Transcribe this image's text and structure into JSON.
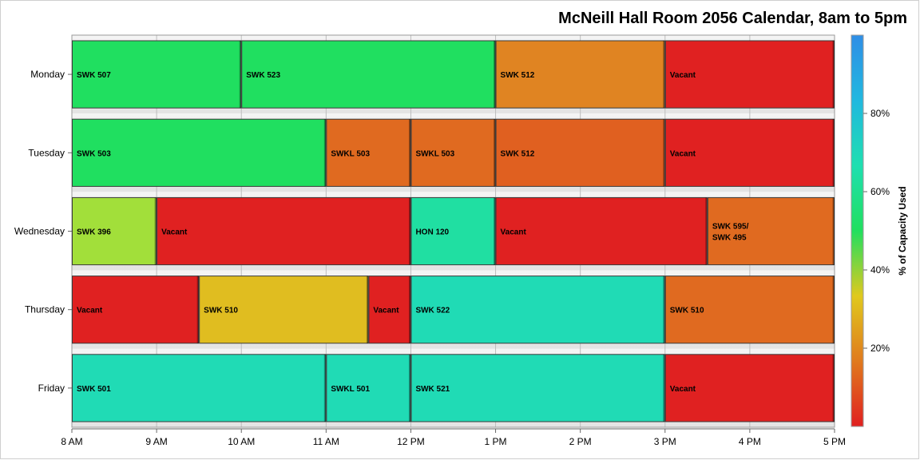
{
  "chart_data": {
    "type": "gantt",
    "title": "McNeill Hall Room 2056 Calendar, 8am to 5pm",
    "x_axis": {
      "range_hours": [
        8,
        17
      ],
      "tick_labels": [
        "8 AM",
        "9 AM",
        "10 AM",
        "11 AM",
        "12 PM",
        "1 PM",
        "2 PM",
        "3 PM",
        "4 PM",
        "5 PM"
      ]
    },
    "days": [
      "Monday",
      "Tuesday",
      "Wednesday",
      "Thursday",
      "Friday"
    ],
    "colorbar": {
      "title": "% of Capacity Used",
      "tick_labels": [
        "20%",
        "40%",
        "60%",
        "80%"
      ],
      "tick_values": [
        20,
        40,
        60,
        80
      ],
      "range": [
        0,
        100
      ],
      "colors": [
        "#e02020",
        "#e07a1e",
        "#e0c91e",
        "#21df5f",
        "#1fdfb0",
        "#21b8df",
        "#2f8ee6"
      ]
    },
    "events": [
      {
        "day": "Monday",
        "label": "SWK 507",
        "start": 8,
        "end": 10,
        "capacity": 65,
        "color": "#20df60"
      },
      {
        "day": "Monday",
        "label": "SWK 523",
        "start": 10,
        "end": 13,
        "capacity": 65,
        "color": "#20df60"
      },
      {
        "day": "Monday",
        "label": "SWK 512",
        "start": 13,
        "end": 15,
        "capacity": 32,
        "color": "#e08422"
      },
      {
        "day": "Monday",
        "label": "Vacant",
        "start": 15,
        "end": 17,
        "capacity": 0,
        "color": "#e02121"
      },
      {
        "day": "Tuesday",
        "label": "SWK 503",
        "start": 8,
        "end": 11,
        "capacity": 65,
        "color": "#20df60"
      },
      {
        "day": "Tuesday",
        "label": "SWKL 503",
        "start": 11,
        "end": 12,
        "capacity": 27,
        "color": "#e06a20"
      },
      {
        "day": "Tuesday",
        "label": "SWKL 503",
        "start": 12,
        "end": 13,
        "capacity": 27,
        "color": "#e06a20"
      },
      {
        "day": "Tuesday",
        "label": "SWK 512",
        "start": 13,
        "end": 15,
        "capacity": 25,
        "color": "#e06020"
      },
      {
        "day": "Tuesday",
        "label": "Vacant",
        "start": 15,
        "end": 17,
        "capacity": 0,
        "color": "#e02121"
      },
      {
        "day": "Wednesday",
        "label": "SWK 396",
        "start": 8,
        "end": 9,
        "capacity": 55,
        "color": "#a2df3a"
      },
      {
        "day": "Wednesday",
        "label": "Vacant",
        "start": 9,
        "end": 12,
        "capacity": 0,
        "color": "#e02121"
      },
      {
        "day": "Wednesday",
        "label": "HON 120",
        "start": 12,
        "end": 13,
        "capacity": 75,
        "color": "#20dfa2"
      },
      {
        "day": "Wednesday",
        "label": "Vacant",
        "start": 13,
        "end": 15.5,
        "capacity": 0,
        "color": "#e02121"
      },
      {
        "day": "Wednesday",
        "label": "SWK 595/",
        "label2": "SWK 495",
        "start": 15.5,
        "end": 17,
        "capacity": 27,
        "color": "#e06a20"
      },
      {
        "day": "Thursday",
        "label": "Vacant",
        "start": 8,
        "end": 9.5,
        "capacity": 0,
        "color": "#e02121"
      },
      {
        "day": "Thursday",
        "label": "SWK 510",
        "start": 9.5,
        "end": 11.5,
        "capacity": 40,
        "color": "#e0bd20"
      },
      {
        "day": "Thursday",
        "label": "Vacant",
        "start": 11.5,
        "end": 12,
        "capacity": 0,
        "color": "#e02121"
      },
      {
        "day": "Thursday",
        "label": "SWK 522",
        "start": 12,
        "end": 15,
        "capacity": 78,
        "color": "#20dbb5"
      },
      {
        "day": "Thursday",
        "label": "SWK 510",
        "start": 15,
        "end": 17,
        "capacity": 27,
        "color": "#e06a20"
      },
      {
        "day": "Friday",
        "label": "SWK 501",
        "start": 8,
        "end": 11,
        "capacity": 78,
        "color": "#20dbb5"
      },
      {
        "day": "Friday",
        "label": "SWKL 501",
        "start": 11,
        "end": 12,
        "capacity": 78,
        "color": "#20dbb5"
      },
      {
        "day": "Friday",
        "label": "SWK 521",
        "start": 12,
        "end": 15,
        "capacity": 78,
        "color": "#20dbb5"
      },
      {
        "day": "Friday",
        "label": "Vacant",
        "start": 15,
        "end": 17,
        "capacity": 0,
        "color": "#e02121"
      }
    ]
  }
}
